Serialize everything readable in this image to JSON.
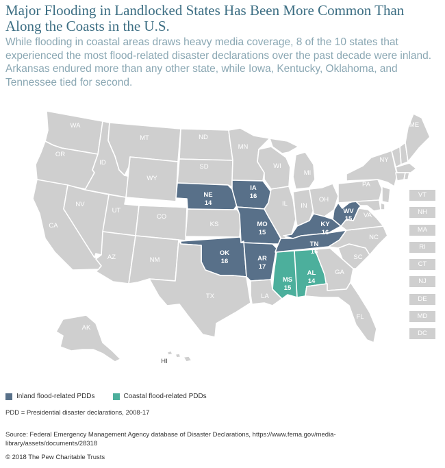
{
  "title": "Major Flooding in Landlocked States Has Been More Common Than Along the Coasts in the U.S.",
  "subtitle": "While flooding in coastal areas draws heavy media coverage, 8 of the 10 states that experienced the most flood-related disaster declarations over the past decade were inland. Arkansas endured more than any other state, while Iowa, Kentucky, Oklahoma, and Tennessee tied for second.",
  "colors": {
    "default": "#cfcfcf",
    "inland": "#587089",
    "coastal": "#4caf9c",
    "title": "#3c6e83",
    "subtitle": "#8aa7b3"
  },
  "states": {
    "WA": {
      "abbr": "WA"
    },
    "OR": {
      "abbr": "OR"
    },
    "CA": {
      "abbr": "CA"
    },
    "ID": {
      "abbr": "ID"
    },
    "NV": {
      "abbr": "NV"
    },
    "MT": {
      "abbr": "MT"
    },
    "WY": {
      "abbr": "WY"
    },
    "UT": {
      "abbr": "UT"
    },
    "AZ": {
      "abbr": "AZ"
    },
    "CO": {
      "abbr": "CO"
    },
    "NM": {
      "abbr": "NM"
    },
    "ND": {
      "abbr": "ND"
    },
    "SD": {
      "abbr": "SD"
    },
    "NE": {
      "abbr": "NE",
      "value": "14",
      "category": "inland"
    },
    "KS": {
      "abbr": "KS"
    },
    "OK": {
      "abbr": "OK",
      "value": "16",
      "category": "inland"
    },
    "TX": {
      "abbr": "TX"
    },
    "MN": {
      "abbr": "MN"
    },
    "IA": {
      "abbr": "IA",
      "value": "16",
      "category": "inland"
    },
    "MO": {
      "abbr": "MO",
      "value": "15",
      "category": "inland"
    },
    "AR": {
      "abbr": "AR",
      "value": "17",
      "category": "inland"
    },
    "LA": {
      "abbr": "LA"
    },
    "WI": {
      "abbr": "WI"
    },
    "IL": {
      "abbr": "IL"
    },
    "MI": {
      "abbr": "MI"
    },
    "IN": {
      "abbr": "IN"
    },
    "OH": {
      "abbr": "OH"
    },
    "KY": {
      "abbr": "KY",
      "value": "16",
      "category": "inland"
    },
    "TN": {
      "abbr": "TN",
      "value": "16",
      "category": "inland"
    },
    "MS": {
      "abbr": "MS",
      "value": "15",
      "category": "coastal"
    },
    "AL": {
      "abbr": "AL",
      "value": "14",
      "category": "coastal"
    },
    "GA": {
      "abbr": "GA"
    },
    "FL": {
      "abbr": "FL"
    },
    "SC": {
      "abbr": "SC"
    },
    "NC": {
      "abbr": "NC"
    },
    "VA": {
      "abbr": "VA"
    },
    "WV": {
      "abbr": "WV",
      "value": "15",
      "category": "inland"
    },
    "PA": {
      "abbr": "PA"
    },
    "NY": {
      "abbr": "NY"
    },
    "ME": {
      "abbr": "ME"
    },
    "AK": {
      "abbr": "AK"
    },
    "HI": {
      "abbr": "HI"
    }
  },
  "small_states": [
    "VT",
    "NH",
    "MA",
    "RI",
    "CT",
    "NJ",
    "DE",
    "MD",
    "DC"
  ],
  "legend": {
    "inland": "Inland flood-related PDDs",
    "coastal": "Coastal flood-related PDDs"
  },
  "note": "PDD = Presidential disaster declarations, 2008-17",
  "source": "Source: Federal Emergency Management Agency database of Disaster Declarations, https://www.fema.gov/media-library/assets/documents/28318",
  "copyright": "© 2018 The Pew Charitable Trusts"
}
